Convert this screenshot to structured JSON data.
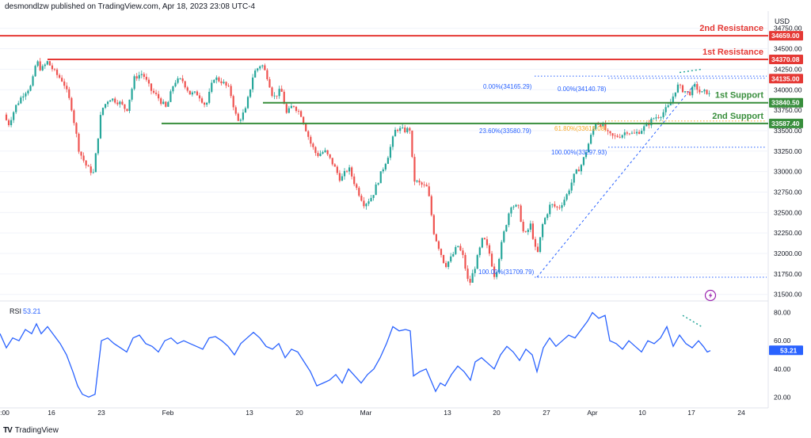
{
  "header": {
    "published_text": "desmondlzw published on TradingView.com, Apr 18, 2023 23:08 UTC-4"
  },
  "footer": {
    "brand": "TradingView",
    "logo": "TV"
  },
  "icons": {
    "lightning": "lightning-icon",
    "logo": "tradingview-logo-icon"
  },
  "colors": {
    "up": "#26a69a",
    "down": "#ef5350",
    "resistance": "#e53935",
    "support": "#388e3c",
    "fib": "#2962ff",
    "fib618": "#f9a825",
    "rsi": "#2962ff",
    "price_tag": "#131722",
    "lightning": "#9c27b0"
  },
  "chart_data": [
    {
      "type": "candlestick",
      "currency": "USD",
      "y_ticks": [
        31500,
        31750,
        32000,
        32250,
        32500,
        32750,
        33000,
        33250,
        33500,
        33750,
        34000,
        34250,
        34500,
        34750
      ],
      "y_tick_labels": [
        "31500.00",
        "31750.00",
        "32000.00",
        "32250.00",
        "32500.00",
        "32750.00",
        "33000.00",
        "33250.00",
        "33500.00",
        "33750.00",
        "34000.00",
        "34250.00",
        "34500.00",
        "34750.00"
      ],
      "ylim": [
        31420,
        34960
      ],
      "x_tick_labels": [
        ":00",
        "16",
        "23",
        "Feb",
        "13",
        "20",
        "Mar",
        "13",
        "20",
        "27",
        "Apr",
        "10",
        "17",
        "24"
      ],
      "close_path": [
        [
          0,
          33900
        ],
        [
          10,
          33560
        ],
        [
          20,
          33800
        ],
        [
          30,
          33960
        ],
        [
          40,
          34050
        ],
        [
          46,
          34360
        ],
        [
          52,
          34240
        ],
        [
          60,
          34340
        ],
        [
          70,
          34200
        ],
        [
          80,
          34100
        ],
        [
          90,
          33800
        ],
        [
          100,
          33250
        ],
        [
          110,
          33050
        ],
        [
          118,
          32980
        ],
        [
          128,
          33750
        ],
        [
          138,
          33900
        ],
        [
          150,
          33850
        ],
        [
          160,
          33750
        ],
        [
          170,
          34150
        ],
        [
          180,
          34200
        ],
        [
          190,
          34000
        ],
        [
          200,
          33900
        ],
        [
          210,
          33770
        ],
        [
          220,
          34100
        ],
        [
          230,
          34120
        ],
        [
          240,
          33950
        ],
        [
          250,
          33950
        ],
        [
          260,
          33800
        ],
        [
          270,
          34150
        ],
        [
          280,
          34100
        ],
        [
          290,
          34000
        ],
        [
          300,
          33600
        ],
        [
          310,
          33750
        ],
        [
          320,
          34200
        ],
        [
          330,
          34320
        ],
        [
          338,
          34150
        ],
        [
          345,
          33900
        ],
        [
          355,
          34000
        ],
        [
          362,
          33700
        ],
        [
          370,
          33820
        ],
        [
          380,
          33700
        ],
        [
          392,
          33350
        ],
        [
          400,
          33200
        ],
        [
          410,
          33250
        ],
        [
          420,
          33100
        ],
        [
          430,
          32900
        ],
        [
          440,
          33050
        ],
        [
          450,
          32800
        ],
        [
          460,
          32600
        ],
        [
          470,
          32700
        ],
        [
          480,
          32950
        ],
        [
          490,
          33200
        ],
        [
          500,
          33530
        ],
        [
          510,
          33500
        ],
        [
          518,
          33520
        ],
        [
          522,
          32900
        ],
        [
          530,
          32850
        ],
        [
          540,
          32800
        ],
        [
          548,
          32250
        ],
        [
          555,
          32050
        ],
        [
          562,
          31850
        ],
        [
          570,
          31950
        ],
        [
          578,
          32100
        ],
        [
          585,
          31950
        ],
        [
          592,
          31600
        ],
        [
          600,
          31850
        ],
        [
          610,
          32200
        ],
        [
          618,
          32000
        ],
        [
          625,
          31700
        ],
        [
          635,
          32200
        ],
        [
          645,
          32600
        ],
        [
          655,
          32550
        ],
        [
          662,
          32200
        ],
        [
          670,
          32350
        ],
        [
          678,
          31950
        ],
        [
          685,
          32350
        ],
        [
          695,
          32600
        ],
        [
          705,
          32550
        ],
        [
          715,
          32700
        ],
        [
          725,
          32950
        ],
        [
          735,
          33100
        ],
        [
          745,
          33400
        ],
        [
          752,
          33600
        ],
        [
          760,
          33580
        ],
        [
          768,
          33450
        ],
        [
          775,
          33420
        ],
        [
          785,
          33450
        ],
        [
          792,
          33500
        ],
        [
          800,
          33450
        ],
        [
          808,
          33500
        ],
        [
          815,
          33550
        ],
        [
          825,
          33650
        ],
        [
          835,
          33700
        ],
        [
          845,
          33800
        ],
        [
          855,
          34050
        ],
        [
          862,
          34000
        ],
        [
          870,
          33950
        ],
        [
          878,
          34050
        ],
        [
          885,
          33950
        ],
        [
          892,
          33980
        ],
        [
          897,
          33920
        ]
      ],
      "levels": [
        {
          "name": "2nd Resistance",
          "value": 34659.0,
          "label": "34659.00",
          "kind": "resistance"
        },
        {
          "name": "1st Resistance",
          "value": 34370.08,
          "label": "34370.08",
          "kind": "resistance"
        },
        {
          "name": "1st Support",
          "value": 33840.5,
          "label": "33840.50",
          "kind": "support"
        },
        {
          "name": "2nd Support",
          "value": 33587.4,
          "label": "33587.40",
          "kind": "support"
        }
      ],
      "current_price": {
        "value": 34135.0,
        "label": "34135.00"
      },
      "fib_labels": [
        {
          "text": "0.00%(34165.29)",
          "value": 34165.29
        },
        {
          "text": "0.00%(34140.78)",
          "value": 34140.78
        },
        {
          "text": "23.60%(33580.79)",
          "value": 33580.79
        },
        {
          "text": "61.80%(33618.08)",
          "value": 33618.08
        },
        {
          "text": "100.00%(33297.93)",
          "value": 33297.93
        },
        {
          "text": "100.00%(31709.79)",
          "value": 31709.79
        }
      ]
    },
    {
      "type": "line",
      "title": "RSI",
      "value_label": "53.21",
      "current_value": 53.21,
      "y_ticks": [
        20,
        40,
        60,
        80
      ],
      "y_tick_labels": [
        "20.00",
        "40.00",
        "60.00",
        "80.00"
      ],
      "ylim": [
        14,
        86
      ],
      "series": [
        [
          0,
          65
        ],
        [
          8,
          55
        ],
        [
          16,
          62
        ],
        [
          24,
          60
        ],
        [
          32,
          68
        ],
        [
          40,
          65
        ],
        [
          46,
          72
        ],
        [
          52,
          65
        ],
        [
          60,
          70
        ],
        [
          68,
          64
        ],
        [
          76,
          58
        ],
        [
          84,
          50
        ],
        [
          92,
          38
        ],
        [
          98,
          28
        ],
        [
          104,
          22
        ],
        [
          112,
          20
        ],
        [
          120,
          22
        ],
        [
          128,
          60
        ],
        [
          136,
          62
        ],
        [
          144,
          58
        ],
        [
          152,
          55
        ],
        [
          160,
          52
        ],
        [
          168,
          62
        ],
        [
          176,
          64
        ],
        [
          184,
          58
        ],
        [
          192,
          56
        ],
        [
          200,
          52
        ],
        [
          208,
          60
        ],
        [
          216,
          62
        ],
        [
          224,
          58
        ],
        [
          232,
          60
        ],
        [
          240,
          58
        ],
        [
          248,
          56
        ],
        [
          256,
          54
        ],
        [
          264,
          62
        ],
        [
          272,
          63
        ],
        [
          280,
          60
        ],
        [
          288,
          56
        ],
        [
          296,
          50
        ],
        [
          304,
          58
        ],
        [
          312,
          62
        ],
        [
          320,
          66
        ],
        [
          328,
          62
        ],
        [
          336,
          56
        ],
        [
          344,
          54
        ],
        [
          352,
          58
        ],
        [
          360,
          48
        ],
        [
          368,
          54
        ],
        [
          376,
          52
        ],
        [
          384,
          45
        ],
        [
          392,
          38
        ],
        [
          400,
          28
        ],
        [
          408,
          30
        ],
        [
          416,
          32
        ],
        [
          424,
          36
        ],
        [
          432,
          30
        ],
        [
          440,
          40
        ],
        [
          448,
          35
        ],
        [
          456,
          30
        ],
        [
          464,
          36
        ],
        [
          472,
          40
        ],
        [
          480,
          48
        ],
        [
          488,
          58
        ],
        [
          496,
          70
        ],
        [
          504,
          67
        ],
        [
          512,
          68
        ],
        [
          518,
          67
        ],
        [
          522,
          35
        ],
        [
          530,
          38
        ],
        [
          538,
          40
        ],
        [
          544,
          32
        ],
        [
          550,
          24
        ],
        [
          556,
          30
        ],
        [
          562,
          28
        ],
        [
          570,
          36
        ],
        [
          578,
          42
        ],
        [
          586,
          38
        ],
        [
          594,
          32
        ],
        [
          600,
          45
        ],
        [
          608,
          48
        ],
        [
          616,
          44
        ],
        [
          624,
          40
        ],
        [
          632,
          50
        ],
        [
          640,
          56
        ],
        [
          648,
          52
        ],
        [
          656,
          46
        ],
        [
          664,
          54
        ],
        [
          672,
          50
        ],
        [
          678,
          38
        ],
        [
          686,
          55
        ],
        [
          694,
          62
        ],
        [
          702,
          56
        ],
        [
          710,
          60
        ],
        [
          718,
          64
        ],
        [
          726,
          62
        ],
        [
          734,
          68
        ],
        [
          742,
          74
        ],
        [
          748,
          80
        ],
        [
          756,
          76
        ],
        [
          764,
          78
        ],
        [
          770,
          60
        ],
        [
          778,
          58
        ],
        [
          786,
          54
        ],
        [
          794,
          60
        ],
        [
          802,
          56
        ],
        [
          810,
          52
        ],
        [
          818,
          60
        ],
        [
          826,
          58
        ],
        [
          834,
          62
        ],
        [
          842,
          70
        ],
        [
          850,
          56
        ],
        [
          858,
          64
        ],
        [
          866,
          58
        ],
        [
          874,
          55
        ],
        [
          882,
          60
        ],
        [
          888,
          56
        ],
        [
          893,
          52
        ],
        [
          897,
          53
        ]
      ]
    }
  ]
}
